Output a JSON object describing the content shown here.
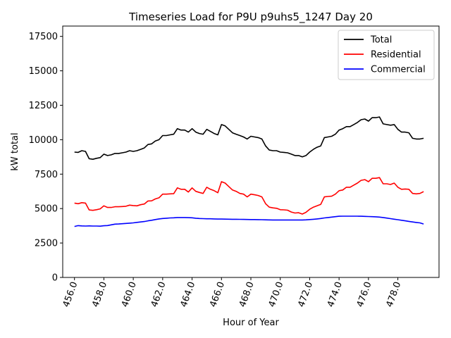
{
  "chart_data": {
    "type": "line",
    "title": "Timeseries Load for P9U p9uhs5_1247  Day 20",
    "xlabel": "Hour of Year",
    "ylabel": "kW total",
    "xlim": [
      455.2,
      480.8
    ],
    "ylim": [
      0,
      18250
    ],
    "x_ticks": [
      456,
      458,
      460,
      462,
      464,
      466,
      468,
      470,
      472,
      474,
      476,
      478
    ],
    "x_tick_labels": [
      "456.0",
      "458.0",
      "460.0",
      "462.0",
      "464.0",
      "466.0",
      "468.0",
      "470.0",
      "472.0",
      "474.0",
      "476.0",
      "478.0"
    ],
    "y_ticks": [
      0,
      2500,
      5000,
      7500,
      10000,
      12500,
      15000,
      17500
    ],
    "y_tick_labels": [
      "0",
      "2500",
      "5000",
      "7500",
      "10000",
      "12500",
      "15000",
      "17500"
    ],
    "legend_position": "top-right",
    "series": [
      {
        "name": "Total",
        "color": "#000000",
        "points": [
          [
            456.0,
            9100
          ],
          [
            456.25,
            9080
          ],
          [
            456.5,
            9200
          ],
          [
            456.75,
            9150
          ],
          [
            457.0,
            8620
          ],
          [
            457.25,
            8580
          ],
          [
            457.5,
            8650
          ],
          [
            457.75,
            8700
          ],
          [
            458.0,
            8950
          ],
          [
            458.25,
            8850
          ],
          [
            458.5,
            8900
          ],
          [
            458.75,
            9000
          ],
          [
            459.0,
            9000
          ],
          [
            459.25,
            9050
          ],
          [
            459.5,
            9100
          ],
          [
            459.75,
            9200
          ],
          [
            460.0,
            9150
          ],
          [
            460.25,
            9200
          ],
          [
            460.5,
            9300
          ],
          [
            460.75,
            9400
          ],
          [
            461.0,
            9650
          ],
          [
            461.25,
            9700
          ],
          [
            461.5,
            9900
          ],
          [
            461.75,
            10000
          ],
          [
            462.0,
            10300
          ],
          [
            462.25,
            10300
          ],
          [
            462.5,
            10350
          ],
          [
            462.75,
            10400
          ],
          [
            463.0,
            10800
          ],
          [
            463.25,
            10700
          ],
          [
            463.5,
            10700
          ],
          [
            463.75,
            10550
          ],
          [
            464.0,
            10800
          ],
          [
            464.25,
            10550
          ],
          [
            464.5,
            10450
          ],
          [
            464.75,
            10400
          ],
          [
            465.0,
            10750
          ],
          [
            465.25,
            10600
          ],
          [
            465.5,
            10450
          ],
          [
            465.75,
            10350
          ],
          [
            466.0,
            11100
          ],
          [
            466.25,
            11000
          ],
          [
            466.5,
            10750
          ],
          [
            466.75,
            10500
          ],
          [
            467.0,
            10400
          ],
          [
            467.25,
            10300
          ],
          [
            467.5,
            10200
          ],
          [
            467.75,
            10050
          ],
          [
            468.0,
            10250
          ],
          [
            468.25,
            10200
          ],
          [
            468.5,
            10150
          ],
          [
            468.75,
            10050
          ],
          [
            469.0,
            9550
          ],
          [
            469.25,
            9250
          ],
          [
            469.5,
            9200
          ],
          [
            469.75,
            9200
          ],
          [
            470.0,
            9100
          ],
          [
            470.25,
            9080
          ],
          [
            470.5,
            9050
          ],
          [
            470.75,
            8950
          ],
          [
            471.0,
            8850
          ],
          [
            471.25,
            8850
          ],
          [
            471.5,
            8750
          ],
          [
            471.75,
            8850
          ],
          [
            472.0,
            9100
          ],
          [
            472.25,
            9300
          ],
          [
            472.5,
            9450
          ],
          [
            472.75,
            9550
          ],
          [
            473.0,
            10150
          ],
          [
            473.25,
            10200
          ],
          [
            473.5,
            10250
          ],
          [
            473.75,
            10400
          ],
          [
            474.0,
            10700
          ],
          [
            474.25,
            10800
          ],
          [
            474.5,
            10950
          ],
          [
            474.75,
            10950
          ],
          [
            475.0,
            11100
          ],
          [
            475.25,
            11250
          ],
          [
            475.5,
            11450
          ],
          [
            475.75,
            11500
          ],
          [
            476.0,
            11350
          ],
          [
            476.25,
            11600
          ],
          [
            476.5,
            11600
          ],
          [
            476.75,
            11650
          ],
          [
            477.0,
            11150
          ],
          [
            477.25,
            11100
          ],
          [
            477.5,
            11050
          ],
          [
            477.75,
            11100
          ],
          [
            478.0,
            10750
          ],
          [
            478.25,
            10550
          ],
          [
            478.5,
            10550
          ],
          [
            478.75,
            10500
          ],
          [
            479.0,
            10100
          ],
          [
            479.25,
            10050
          ],
          [
            479.5,
            10050
          ],
          [
            479.75,
            10100
          ]
        ]
      },
      {
        "name": "Residential",
        "color": "#ff0000",
        "points": [
          [
            456.0,
            5400
          ],
          [
            456.25,
            5350
          ],
          [
            456.5,
            5430
          ],
          [
            456.75,
            5400
          ],
          [
            457.0,
            4900
          ],
          [
            457.25,
            4870
          ],
          [
            457.5,
            4920
          ],
          [
            457.75,
            4980
          ],
          [
            458.0,
            5200
          ],
          [
            458.25,
            5080
          ],
          [
            458.5,
            5080
          ],
          [
            458.75,
            5130
          ],
          [
            459.0,
            5130
          ],
          [
            459.25,
            5150
          ],
          [
            459.5,
            5170
          ],
          [
            459.75,
            5250
          ],
          [
            460.0,
            5220
          ],
          [
            460.25,
            5200
          ],
          [
            460.5,
            5280
          ],
          [
            460.75,
            5330
          ],
          [
            461.0,
            5550
          ],
          [
            461.25,
            5560
          ],
          [
            461.5,
            5700
          ],
          [
            461.75,
            5780
          ],
          [
            462.0,
            6050
          ],
          [
            462.25,
            6050
          ],
          [
            462.5,
            6070
          ],
          [
            462.75,
            6080
          ],
          [
            463.0,
            6500
          ],
          [
            463.25,
            6400
          ],
          [
            463.5,
            6400
          ],
          [
            463.75,
            6200
          ],
          [
            464.0,
            6500
          ],
          [
            464.25,
            6250
          ],
          [
            464.5,
            6170
          ],
          [
            464.75,
            6100
          ],
          [
            465.0,
            6550
          ],
          [
            465.25,
            6400
          ],
          [
            465.5,
            6300
          ],
          [
            465.75,
            6150
          ],
          [
            466.0,
            6950
          ],
          [
            466.25,
            6850
          ],
          [
            466.5,
            6600
          ],
          [
            466.75,
            6350
          ],
          [
            467.0,
            6250
          ],
          [
            467.25,
            6100
          ],
          [
            467.5,
            6050
          ],
          [
            467.75,
            5850
          ],
          [
            468.0,
            6050
          ],
          [
            468.25,
            6000
          ],
          [
            468.5,
            5950
          ],
          [
            468.75,
            5850
          ],
          [
            469.0,
            5350
          ],
          [
            469.25,
            5100
          ],
          [
            469.5,
            5050
          ],
          [
            469.75,
            5020
          ],
          [
            470.0,
            4920
          ],
          [
            470.25,
            4910
          ],
          [
            470.5,
            4880
          ],
          [
            470.75,
            4750
          ],
          [
            471.0,
            4680
          ],
          [
            471.25,
            4700
          ],
          [
            471.5,
            4600
          ],
          [
            471.75,
            4730
          ],
          [
            472.0,
            4950
          ],
          [
            472.25,
            5100
          ],
          [
            472.5,
            5200
          ],
          [
            472.75,
            5300
          ],
          [
            473.0,
            5850
          ],
          [
            473.25,
            5880
          ],
          [
            473.5,
            5900
          ],
          [
            473.75,
            6050
          ],
          [
            474.0,
            6300
          ],
          [
            474.25,
            6350
          ],
          [
            474.5,
            6550
          ],
          [
            474.75,
            6550
          ],
          [
            475.0,
            6700
          ],
          [
            475.25,
            6850
          ],
          [
            475.5,
            7050
          ],
          [
            475.75,
            7100
          ],
          [
            476.0,
            6950
          ],
          [
            476.25,
            7200
          ],
          [
            476.5,
            7200
          ],
          [
            476.75,
            7250
          ],
          [
            477.0,
            6800
          ],
          [
            477.25,
            6800
          ],
          [
            477.5,
            6750
          ],
          [
            477.75,
            6850
          ],
          [
            478.0,
            6550
          ],
          [
            478.25,
            6400
          ],
          [
            478.5,
            6420
          ],
          [
            478.75,
            6400
          ],
          [
            479.0,
            6100
          ],
          [
            479.25,
            6070
          ],
          [
            479.5,
            6100
          ],
          [
            479.75,
            6230
          ]
        ]
      },
      {
        "name": "Commercial",
        "color": "#0000ff",
        "points": [
          [
            456.0,
            3700
          ],
          [
            456.25,
            3760
          ],
          [
            456.5,
            3740
          ],
          [
            456.75,
            3730
          ],
          [
            457.0,
            3740
          ],
          [
            457.25,
            3730
          ],
          [
            457.5,
            3730
          ],
          [
            457.75,
            3720
          ],
          [
            458.0,
            3750
          ],
          [
            458.25,
            3770
          ],
          [
            458.5,
            3820
          ],
          [
            458.75,
            3870
          ],
          [
            459.0,
            3880
          ],
          [
            459.25,
            3900
          ],
          [
            459.5,
            3920
          ],
          [
            459.75,
            3940
          ],
          [
            460.0,
            3960
          ],
          [
            460.25,
            4000
          ],
          [
            460.5,
            4030
          ],
          [
            460.75,
            4060
          ],
          [
            461.0,
            4110
          ],
          [
            461.25,
            4150
          ],
          [
            461.5,
            4200
          ],
          [
            461.75,
            4250
          ],
          [
            462.0,
            4280
          ],
          [
            462.25,
            4300
          ],
          [
            462.5,
            4320
          ],
          [
            462.75,
            4330
          ],
          [
            463.0,
            4350
          ],
          [
            463.25,
            4350
          ],
          [
            463.5,
            4350
          ],
          [
            463.75,
            4340
          ],
          [
            464.0,
            4330
          ],
          [
            464.25,
            4300
          ],
          [
            464.5,
            4280
          ],
          [
            464.75,
            4270
          ],
          [
            465.0,
            4260
          ],
          [
            465.25,
            4260
          ],
          [
            465.5,
            4250
          ],
          [
            465.75,
            4240
          ],
          [
            466.0,
            4240
          ],
          [
            466.25,
            4235
          ],
          [
            466.5,
            4230
          ],
          [
            466.75,
            4225
          ],
          [
            467.0,
            4220
          ],
          [
            467.25,
            4215
          ],
          [
            467.5,
            4210
          ],
          [
            467.75,
            4205
          ],
          [
            468.0,
            4200
          ],
          [
            468.25,
            4200
          ],
          [
            468.5,
            4195
          ],
          [
            468.75,
            4190
          ],
          [
            469.0,
            4180
          ],
          [
            469.25,
            4175
          ],
          [
            469.5,
            4170
          ],
          [
            469.75,
            4170
          ],
          [
            470.0,
            4170
          ],
          [
            470.25,
            4170
          ],
          [
            470.5,
            4170
          ],
          [
            470.75,
            4170
          ],
          [
            471.0,
            4170
          ],
          [
            471.25,
            4170
          ],
          [
            471.5,
            4170
          ],
          [
            471.75,
            4180
          ],
          [
            472.0,
            4200
          ],
          [
            472.25,
            4220
          ],
          [
            472.5,
            4250
          ],
          [
            472.75,
            4280
          ],
          [
            473.0,
            4320
          ],
          [
            473.25,
            4350
          ],
          [
            473.5,
            4380
          ],
          [
            473.75,
            4410
          ],
          [
            474.0,
            4440
          ],
          [
            474.25,
            4450
          ],
          [
            474.5,
            4450
          ],
          [
            474.75,
            4450
          ],
          [
            475.0,
            4450
          ],
          [
            475.25,
            4445
          ],
          [
            475.5,
            4440
          ],
          [
            475.75,
            4430
          ],
          [
            476.0,
            4420
          ],
          [
            476.25,
            4410
          ],
          [
            476.5,
            4400
          ],
          [
            476.75,
            4380
          ],
          [
            477.0,
            4350
          ],
          [
            477.25,
            4310
          ],
          [
            477.5,
            4270
          ],
          [
            477.75,
            4230
          ],
          [
            478.0,
            4190
          ],
          [
            478.25,
            4150
          ],
          [
            478.5,
            4110
          ],
          [
            478.75,
            4070
          ],
          [
            479.0,
            4030
          ],
          [
            479.25,
            3990
          ],
          [
            479.5,
            3960
          ],
          [
            479.75,
            3880
          ]
        ]
      }
    ]
  }
}
